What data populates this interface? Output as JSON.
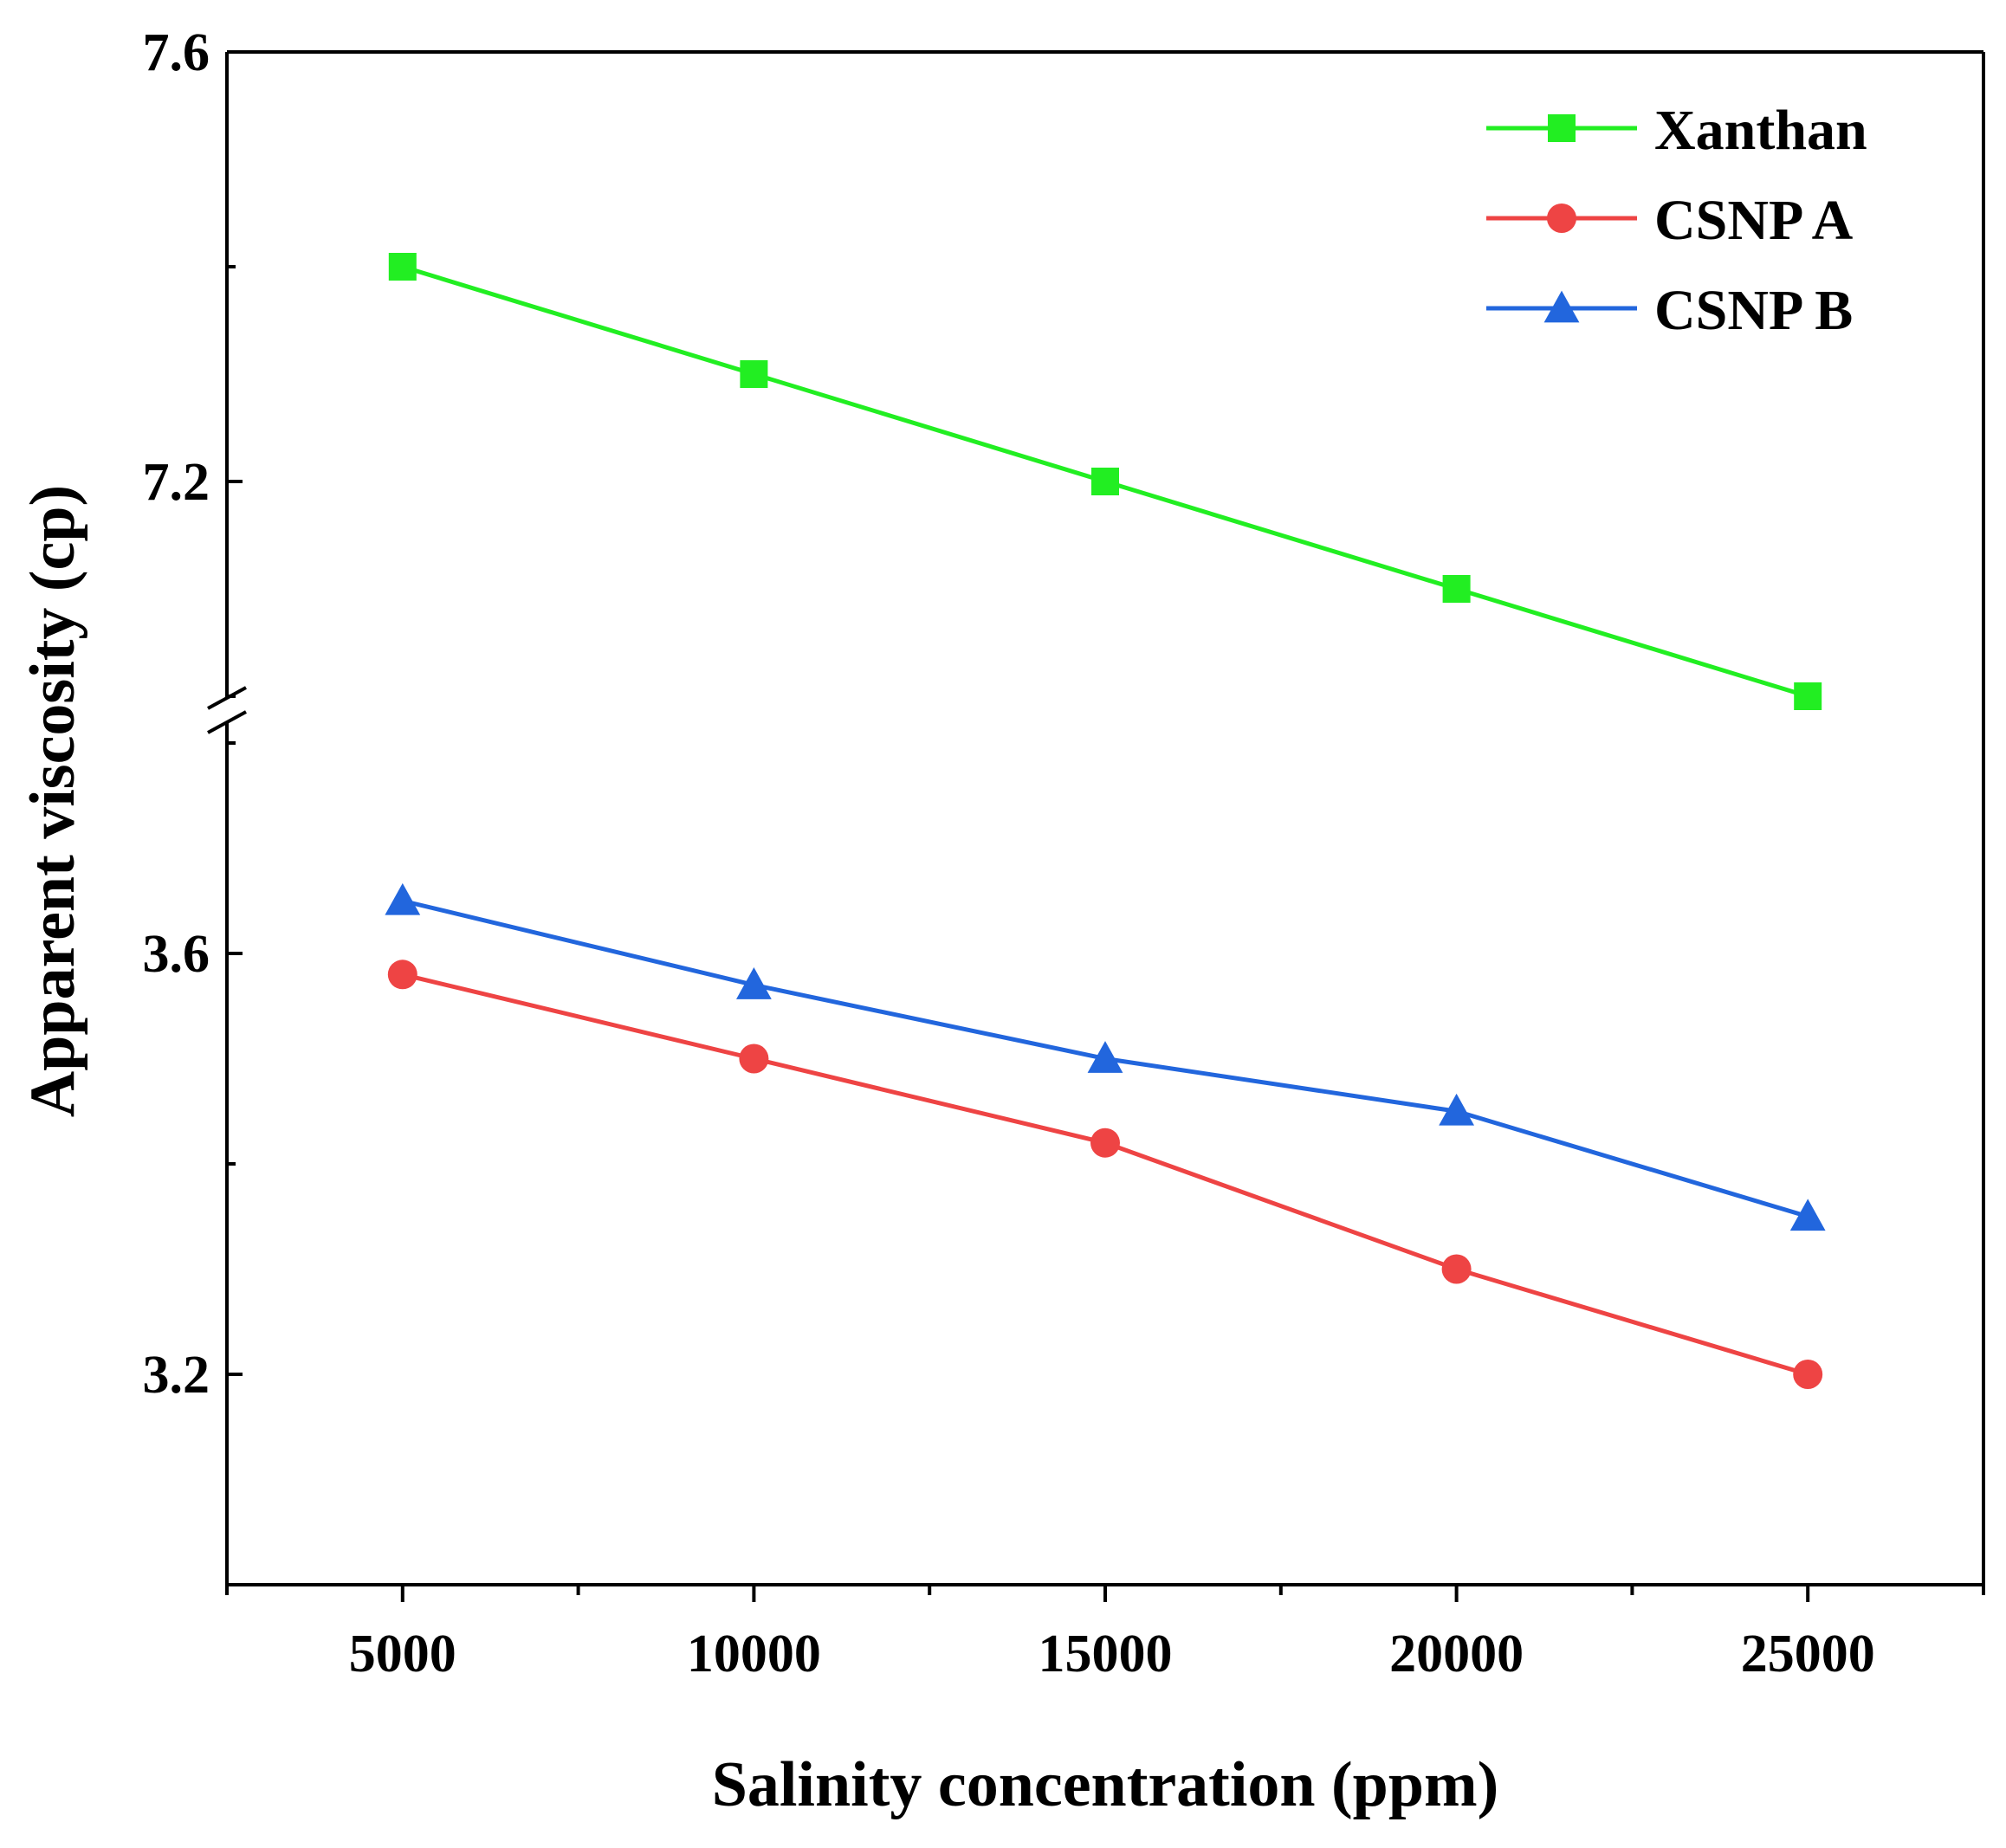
{
  "chart_data": {
    "type": "line",
    "xlabel": "Salinity concentration (ppm)",
    "ylabel": "Apparent viscosity (cp)",
    "x": [
      5000,
      10000,
      15000,
      20000,
      25000
    ],
    "xlim": [
      2500,
      27500
    ],
    "x_ticks": [
      "5000",
      "10000",
      "15000",
      "20000",
      "25000"
    ],
    "y_axis_break": true,
    "y_segments": [
      {
        "ylim": [
          3.0,
          3.8
        ],
        "ticks": [
          "3.2",
          "3.6"
        ]
      },
      {
        "ylim": [
          7.0,
          7.6
        ],
        "ticks": [
          "7.2",
          "7.6"
        ]
      }
    ],
    "series": [
      {
        "name": "Xanthan",
        "values": [
          7.4,
          7.3,
          7.2,
          7.1,
          7.0
        ],
        "color": "#22ee22",
        "marker": "square"
      },
      {
        "name": "CSNP A",
        "values": [
          3.58,
          3.5,
          3.42,
          3.3,
          3.2
        ],
        "color": "#ee4444",
        "marker": "circle"
      },
      {
        "name": "CSNP B",
        "values": [
          3.65,
          3.57,
          3.5,
          3.45,
          3.35
        ],
        "color": "#2266dd",
        "marker": "triangle"
      }
    ],
    "legend_position": "top-right",
    "grid": false
  }
}
